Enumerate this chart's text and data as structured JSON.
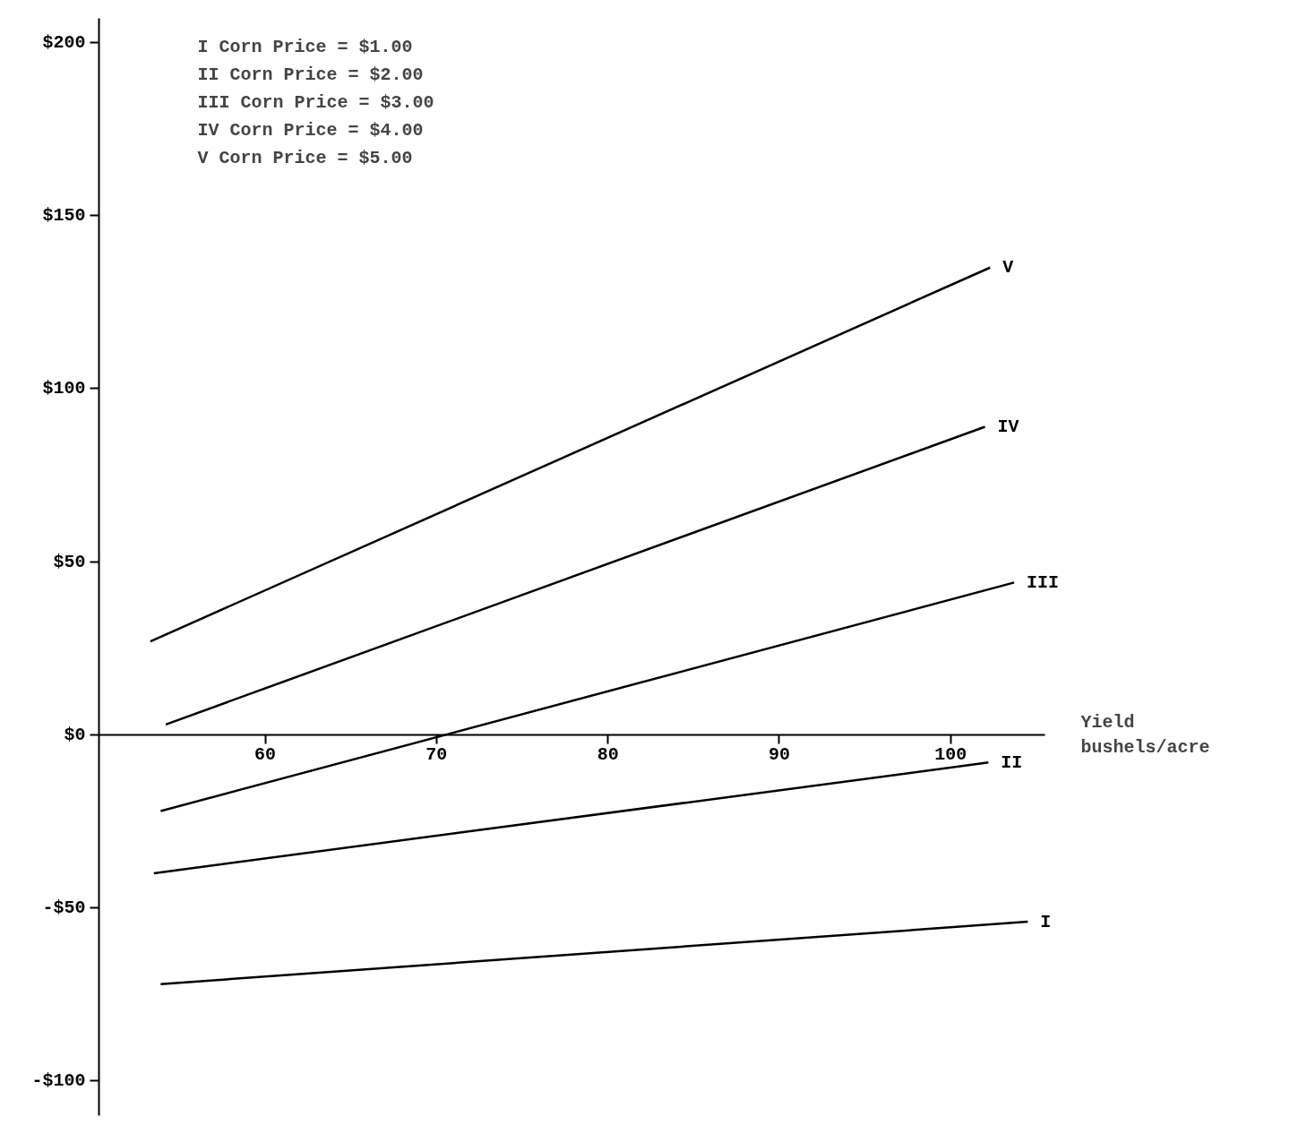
{
  "chart_data": {
    "type": "line",
    "xlabel": "Yield\nbushels/acre",
    "annotations": [
      "I Corn Price = $1.00\nII Corn Price = $2.00\nIII Corn Price = $3.00\nIV Corn Price = $4.00\nV Corn Price = $5.00"
    ],
    "series": [
      {
        "name": "I",
        "color": "#000000",
        "x": [
          53.9,
          104.5
        ],
        "values": [
          -72,
          -54
        ]
      },
      {
        "name": "II",
        "color": "#000000",
        "x": [
          53.5,
          102.2
        ],
        "values": [
          -40,
          -8
        ]
      },
      {
        "name": "III",
        "color": "#000000",
        "x": [
          53.9,
          103.7
        ],
        "values": [
          -22,
          44
        ]
      },
      {
        "name": "IV",
        "color": "#000000",
        "x": [
          54.2,
          102.0
        ],
        "values": [
          3,
          89
        ]
      },
      {
        "name": "V",
        "color": "#000000",
        "x": [
          53.3,
          102.3
        ],
        "values": [
          27,
          135
        ]
      }
    ],
    "xlim": [
      50.3,
      105.5
    ],
    "ylim": [
      -110,
      207
    ],
    "xticks": [
      60,
      70,
      80,
      90,
      100
    ],
    "yticks": [
      {
        "value": -100,
        "label": "-$100"
      },
      {
        "value": -50,
        "label": "-$50"
      },
      {
        "value": 0,
        "label": "$0"
      },
      {
        "value": 50,
        "label": "$50"
      },
      {
        "value": 100,
        "label": "$100"
      },
      {
        "value": 150,
        "label": "$150"
      },
      {
        "value": 200,
        "label": "$200"
      }
    ],
    "grid": false,
    "legend": false,
    "marker": "none",
    "line_style": "solid"
  }
}
